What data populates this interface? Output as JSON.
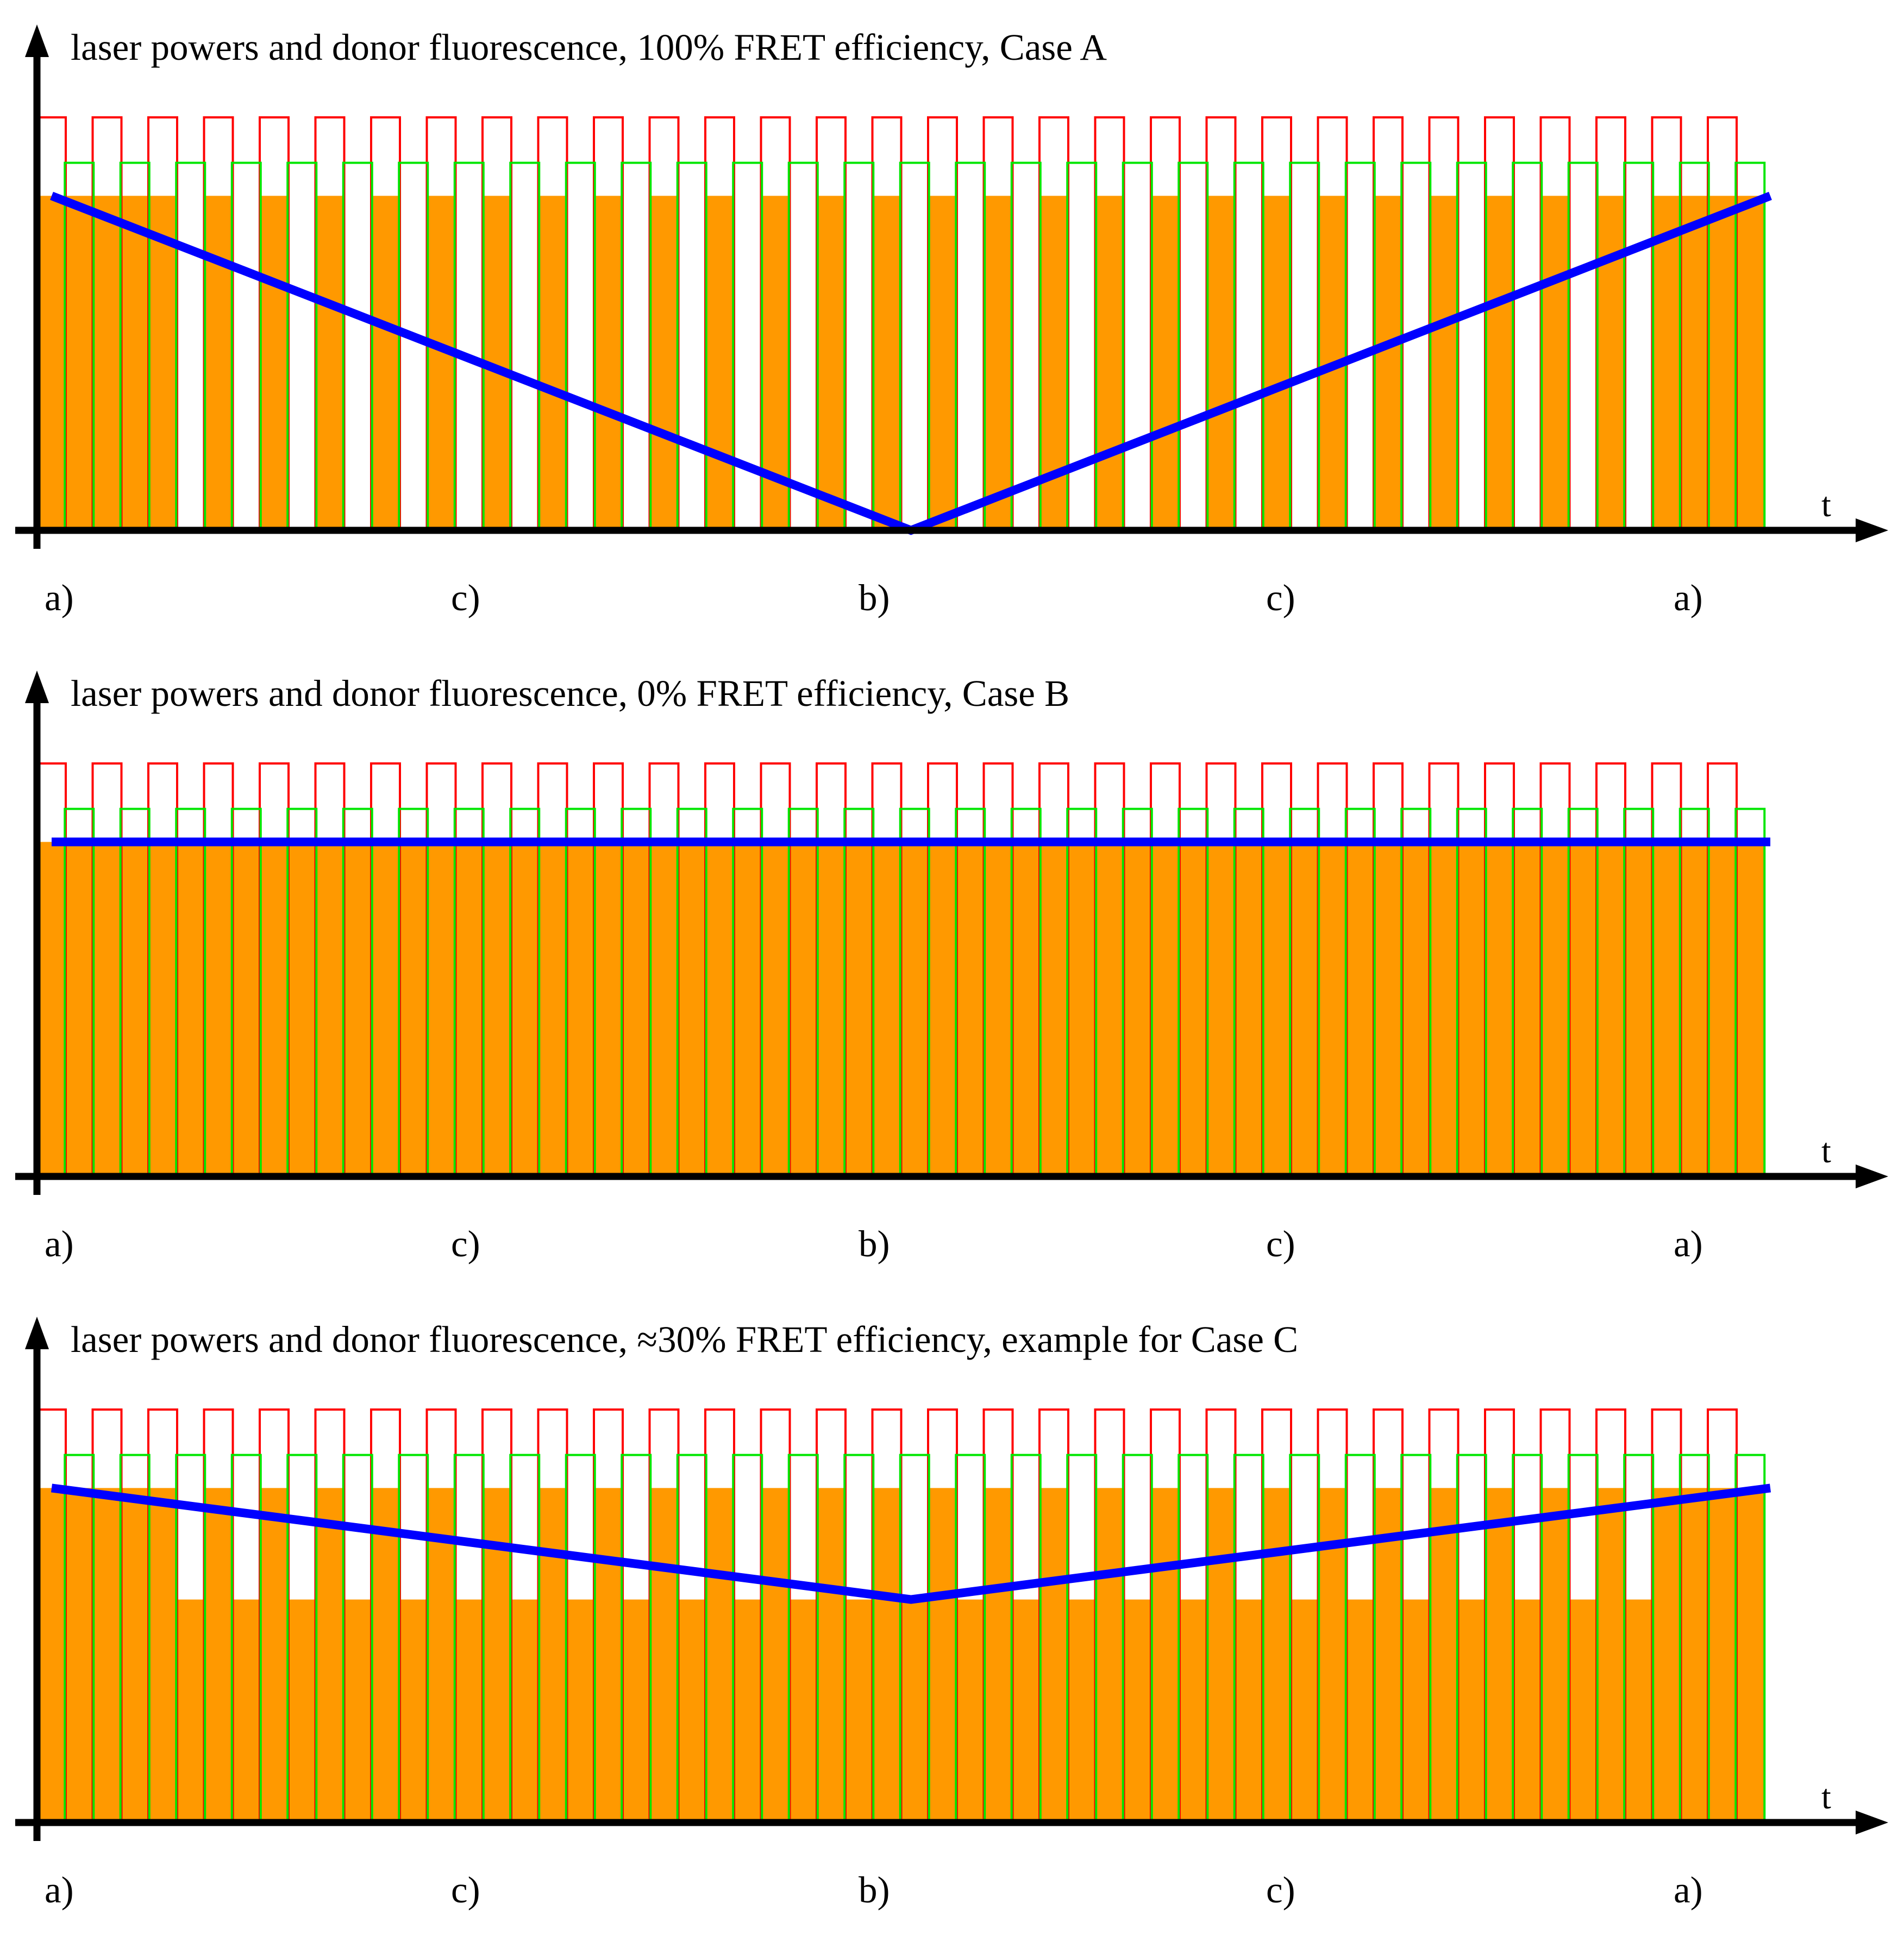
{
  "chart_data": [
    {
      "type": "line",
      "title": "laser powers and donor fluorescence, 100% FRET efficiency, Case A",
      "xlabel": "t",
      "ylabel": "",
      "phase_labels": [
        "a)",
        "c)",
        "b)",
        "c)",
        "a)"
      ],
      "colors": {
        "red_laser": "#ff0000",
        "green_laser": "#00e600",
        "donor_fluorescence": "#ff9900",
        "envelope": "#0000ff",
        "axis": "#000000"
      },
      "pulse_cycles": 31,
      "red_laser_level": 1.0,
      "green_laser_level": 0.89,
      "donor_fluorescence_on_red": [
        0.81,
        0.81,
        0.81,
        0.81,
        0.81,
        0.81,
        0.81,
        0.81,
        0.81,
        0.81,
        0.81,
        0.81,
        0.81,
        0.81,
        0.81,
        0.81,
        0.81,
        0.81,
        0.81,
        0.81,
        0.81,
        0.81,
        0.81,
        0.81,
        0.81,
        0.81,
        0.81,
        0.81,
        0.81,
        0.81,
        0.81
      ],
      "donor_fluorescence_on_green": [
        0.81,
        0.81,
        0.0,
        0.0,
        0.0,
        0.0,
        0.0,
        0.0,
        0.0,
        0.0,
        0.0,
        0.0,
        0.0,
        0.0,
        0.0,
        0.0,
        0.0,
        0.0,
        0.0,
        0.0,
        0.0,
        0.0,
        0.0,
        0.0,
        0.0,
        0.0,
        0.0,
        0.0,
        0.0,
        0.81,
        0.81
      ],
      "envelope": {
        "x": [
          0,
          0.5,
          1
        ],
        "y": [
          0.81,
          0.0,
          0.81
        ]
      }
    },
    {
      "type": "line",
      "title": "laser powers and donor fluorescence, 0% FRET efficiency, Case B",
      "xlabel": "t",
      "ylabel": "",
      "phase_labels": [
        "a)",
        "c)",
        "b)",
        "c)",
        "a)"
      ],
      "colors": {
        "red_laser": "#ff0000",
        "green_laser": "#00e600",
        "donor_fluorescence": "#ff9900",
        "envelope": "#0000ff",
        "axis": "#000000"
      },
      "pulse_cycles": 31,
      "red_laser_level": 1.0,
      "green_laser_level": 0.89,
      "donor_fluorescence_on_red": [
        0.81,
        0.81,
        0.81,
        0.81,
        0.81,
        0.81,
        0.81,
        0.81,
        0.81,
        0.81,
        0.81,
        0.81,
        0.81,
        0.81,
        0.81,
        0.81,
        0.81,
        0.81,
        0.81,
        0.81,
        0.81,
        0.81,
        0.81,
        0.81,
        0.81,
        0.81,
        0.81,
        0.81,
        0.81,
        0.81,
        0.81
      ],
      "donor_fluorescence_on_green": [
        0.81,
        0.81,
        0.81,
        0.81,
        0.81,
        0.81,
        0.81,
        0.81,
        0.81,
        0.81,
        0.81,
        0.81,
        0.81,
        0.81,
        0.81,
        0.81,
        0.81,
        0.81,
        0.81,
        0.81,
        0.81,
        0.81,
        0.81,
        0.81,
        0.81,
        0.81,
        0.81,
        0.81,
        0.81,
        0.81,
        0.81
      ],
      "envelope": {
        "x": [
          0,
          1
        ],
        "y": [
          0.81,
          0.81
        ]
      }
    },
    {
      "type": "line",
      "title": "laser powers and donor fluorescence, ≈30% FRET efficiency, example for Case C",
      "xlabel": "t",
      "ylabel": "",
      "phase_labels": [
        "a)",
        "c)",
        "b)",
        "c)",
        "a)"
      ],
      "colors": {
        "red_laser": "#ff0000",
        "green_laser": "#00e600",
        "donor_fluorescence": "#ff9900",
        "envelope": "#0000ff",
        "axis": "#000000"
      },
      "pulse_cycles": 31,
      "red_laser_level": 1.0,
      "green_laser_level": 0.89,
      "donor_fluorescence_on_red": [
        0.81,
        0.81,
        0.81,
        0.81,
        0.81,
        0.81,
        0.81,
        0.81,
        0.81,
        0.81,
        0.81,
        0.81,
        0.81,
        0.81,
        0.81,
        0.81,
        0.81,
        0.81,
        0.81,
        0.81,
        0.81,
        0.81,
        0.81,
        0.81,
        0.81,
        0.81,
        0.81,
        0.81,
        0.81,
        0.81,
        0.81
      ],
      "donor_fluorescence_on_green": [
        0.81,
        0.81,
        0.54,
        0.54,
        0.54,
        0.54,
        0.54,
        0.54,
        0.54,
        0.54,
        0.54,
        0.54,
        0.54,
        0.54,
        0.54,
        0.54,
        0.54,
        0.54,
        0.54,
        0.54,
        0.54,
        0.54,
        0.54,
        0.54,
        0.54,
        0.54,
        0.54,
        0.54,
        0.54,
        0.81,
        0.81
      ],
      "envelope": {
        "x": [
          0,
          0.5,
          1
        ],
        "y": [
          0.81,
          0.54,
          0.81
        ]
      }
    }
  ]
}
